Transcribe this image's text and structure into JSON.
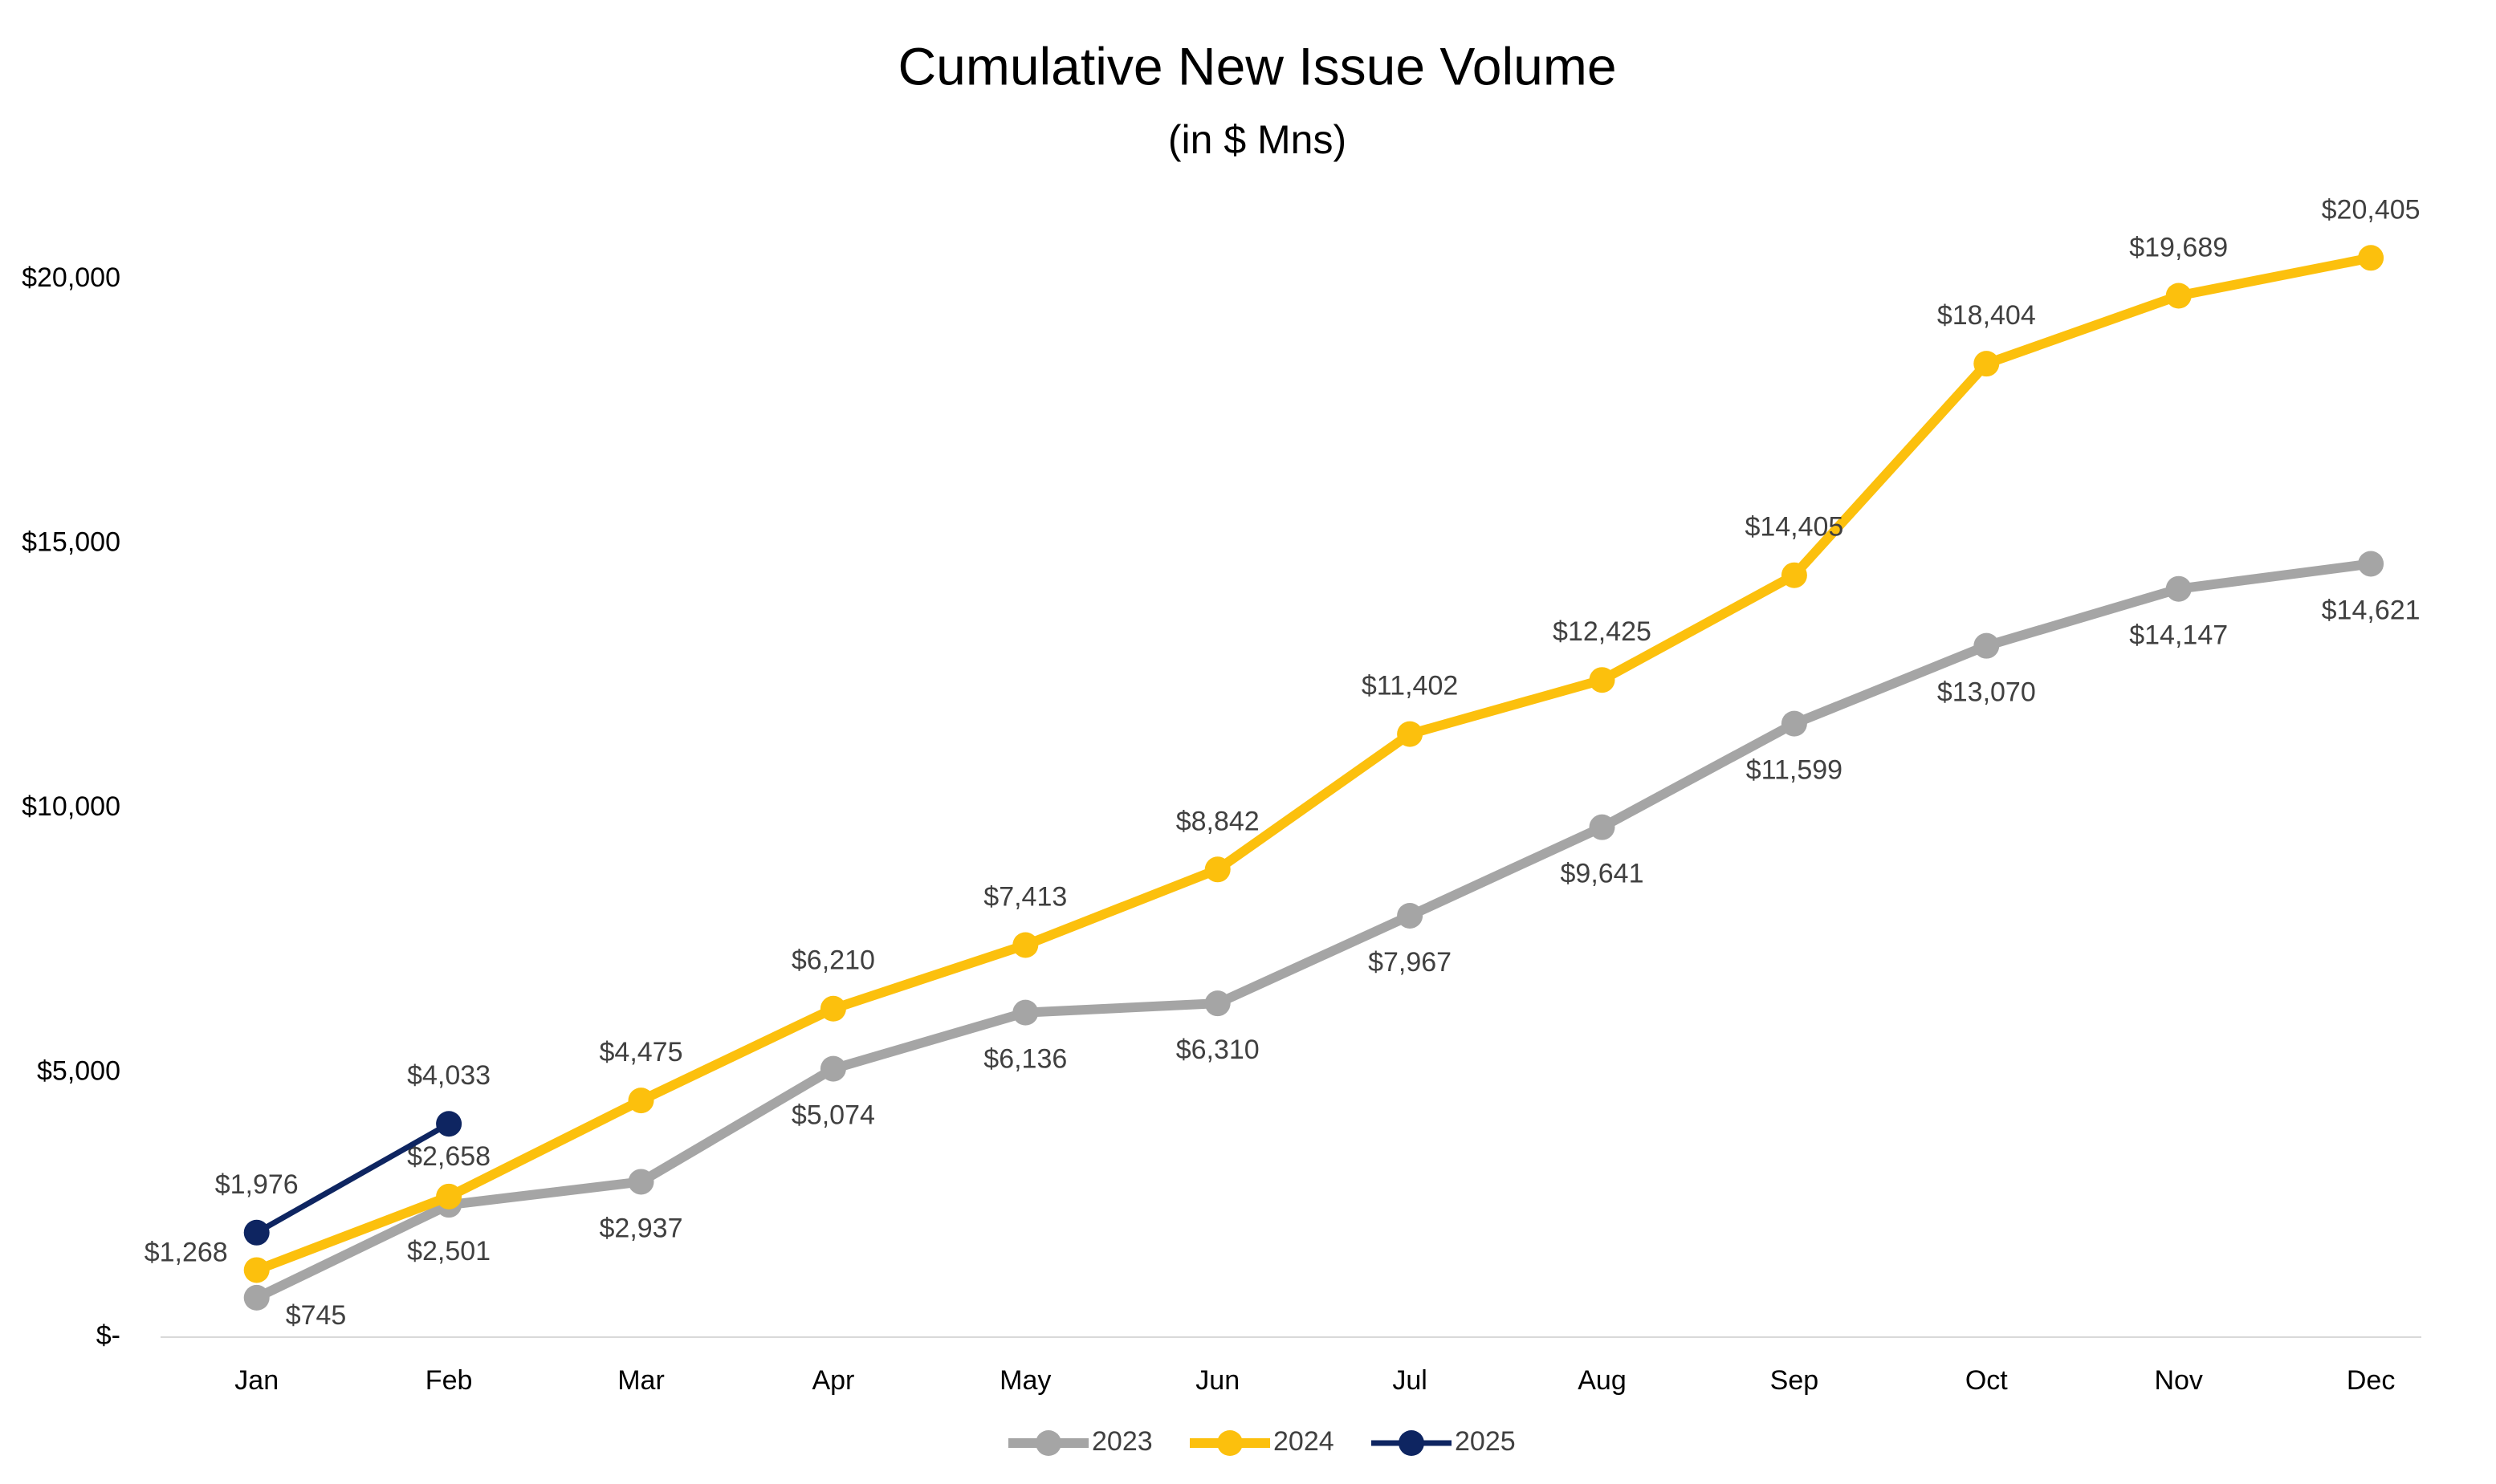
{
  "chart_data": {
    "type": "line",
    "title": "Cumulative New Issue Volume",
    "subtitle": "(in $ Mns)",
    "categories": [
      "Jan",
      "Feb",
      "Mar",
      "Apr",
      "May",
      "Jun",
      "Jul",
      "Aug",
      "Sep",
      "Oct",
      "Nov",
      "Dec"
    ],
    "series": [
      {
        "name": "2023",
        "color": "#a5a5a5",
        "values": [
          745,
          2501,
          2937,
          5074,
          6136,
          6310,
          7967,
          9641,
          11599,
          13070,
          14147,
          14621
        ],
        "value_labels": [
          "$745",
          "$2,501",
          "$2,937",
          "$5,074",
          "$6,136",
          "$6,310",
          "$7,967",
          "$9,641",
          "$11,599",
          "$13,070",
          "$14,147",
          "$14,621"
        ]
      },
      {
        "name": "2024",
        "color": "#fcc00d",
        "values": [
          1268,
          2658,
          4475,
          6210,
          7413,
          8842,
          11402,
          12425,
          14405,
          18404,
          19689,
          20405
        ],
        "value_labels": [
          "$1,268",
          "$2,658",
          "$4,475",
          "$6,210",
          "$7,413",
          "$8,842",
          "$11,402",
          "$12,425",
          "$14,405",
          "$18,404",
          "$19,689",
          "$20,405"
        ]
      },
      {
        "name": "2025",
        "color": "#0e2561",
        "values": [
          1976,
          4033,
          null,
          null,
          null,
          null,
          null,
          null,
          null,
          null,
          null,
          null
        ],
        "value_labels": [
          "$1,976",
          "$4,033",
          null,
          null,
          null,
          null,
          null,
          null,
          null,
          null,
          null,
          null
        ]
      }
    ],
    "ylim": [
      0,
      20000
    ],
    "yticks": [
      {
        "value": 0,
        "label": "$-"
      },
      {
        "value": 5000,
        "label": "$5,000"
      },
      {
        "value": 10000,
        "label": "$10,000"
      },
      {
        "value": 15000,
        "label": "$15,000"
      },
      {
        "value": 20000,
        "label": "$20,000"
      }
    ],
    "grid": false,
    "legend": "bottom"
  }
}
